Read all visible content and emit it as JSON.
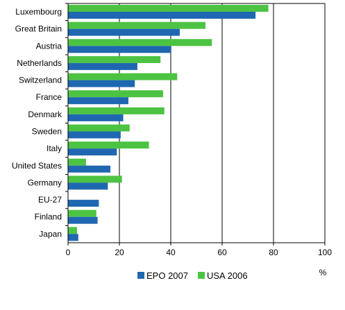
{
  "chart_data": {
    "type": "bar",
    "orientation": "horizontal",
    "categories": [
      "Luxembourg",
      "Great Britain",
      "Austria",
      "Netherlands",
      "Switzerland",
      "France",
      "Denmark",
      "Sweden",
      "Italy",
      "United States",
      "Germany",
      "EU-27",
      "Finland",
      "Japan"
    ],
    "series": [
      {
        "name": "EPO 2007",
        "color": "#1f67b1",
        "values": [
          73,
          43.5,
          40,
          27,
          26,
          23.5,
          21.5,
          20.5,
          19,
          16.5,
          15.5,
          12,
          11.5,
          4
        ]
      },
      {
        "name": "USA 2006",
        "color": "#4cc342",
        "values": [
          78,
          53.5,
          56,
          36,
          42.5,
          37,
          37.5,
          24,
          31.5,
          7,
          21,
          null,
          11,
          3.5
        ]
      }
    ],
    "xlim": [
      0,
      100
    ],
    "xticks": [
      0,
      20,
      40,
      60,
      80,
      100
    ],
    "xunit": "%",
    "grid": "vertical",
    "legend_position": "bottom"
  }
}
